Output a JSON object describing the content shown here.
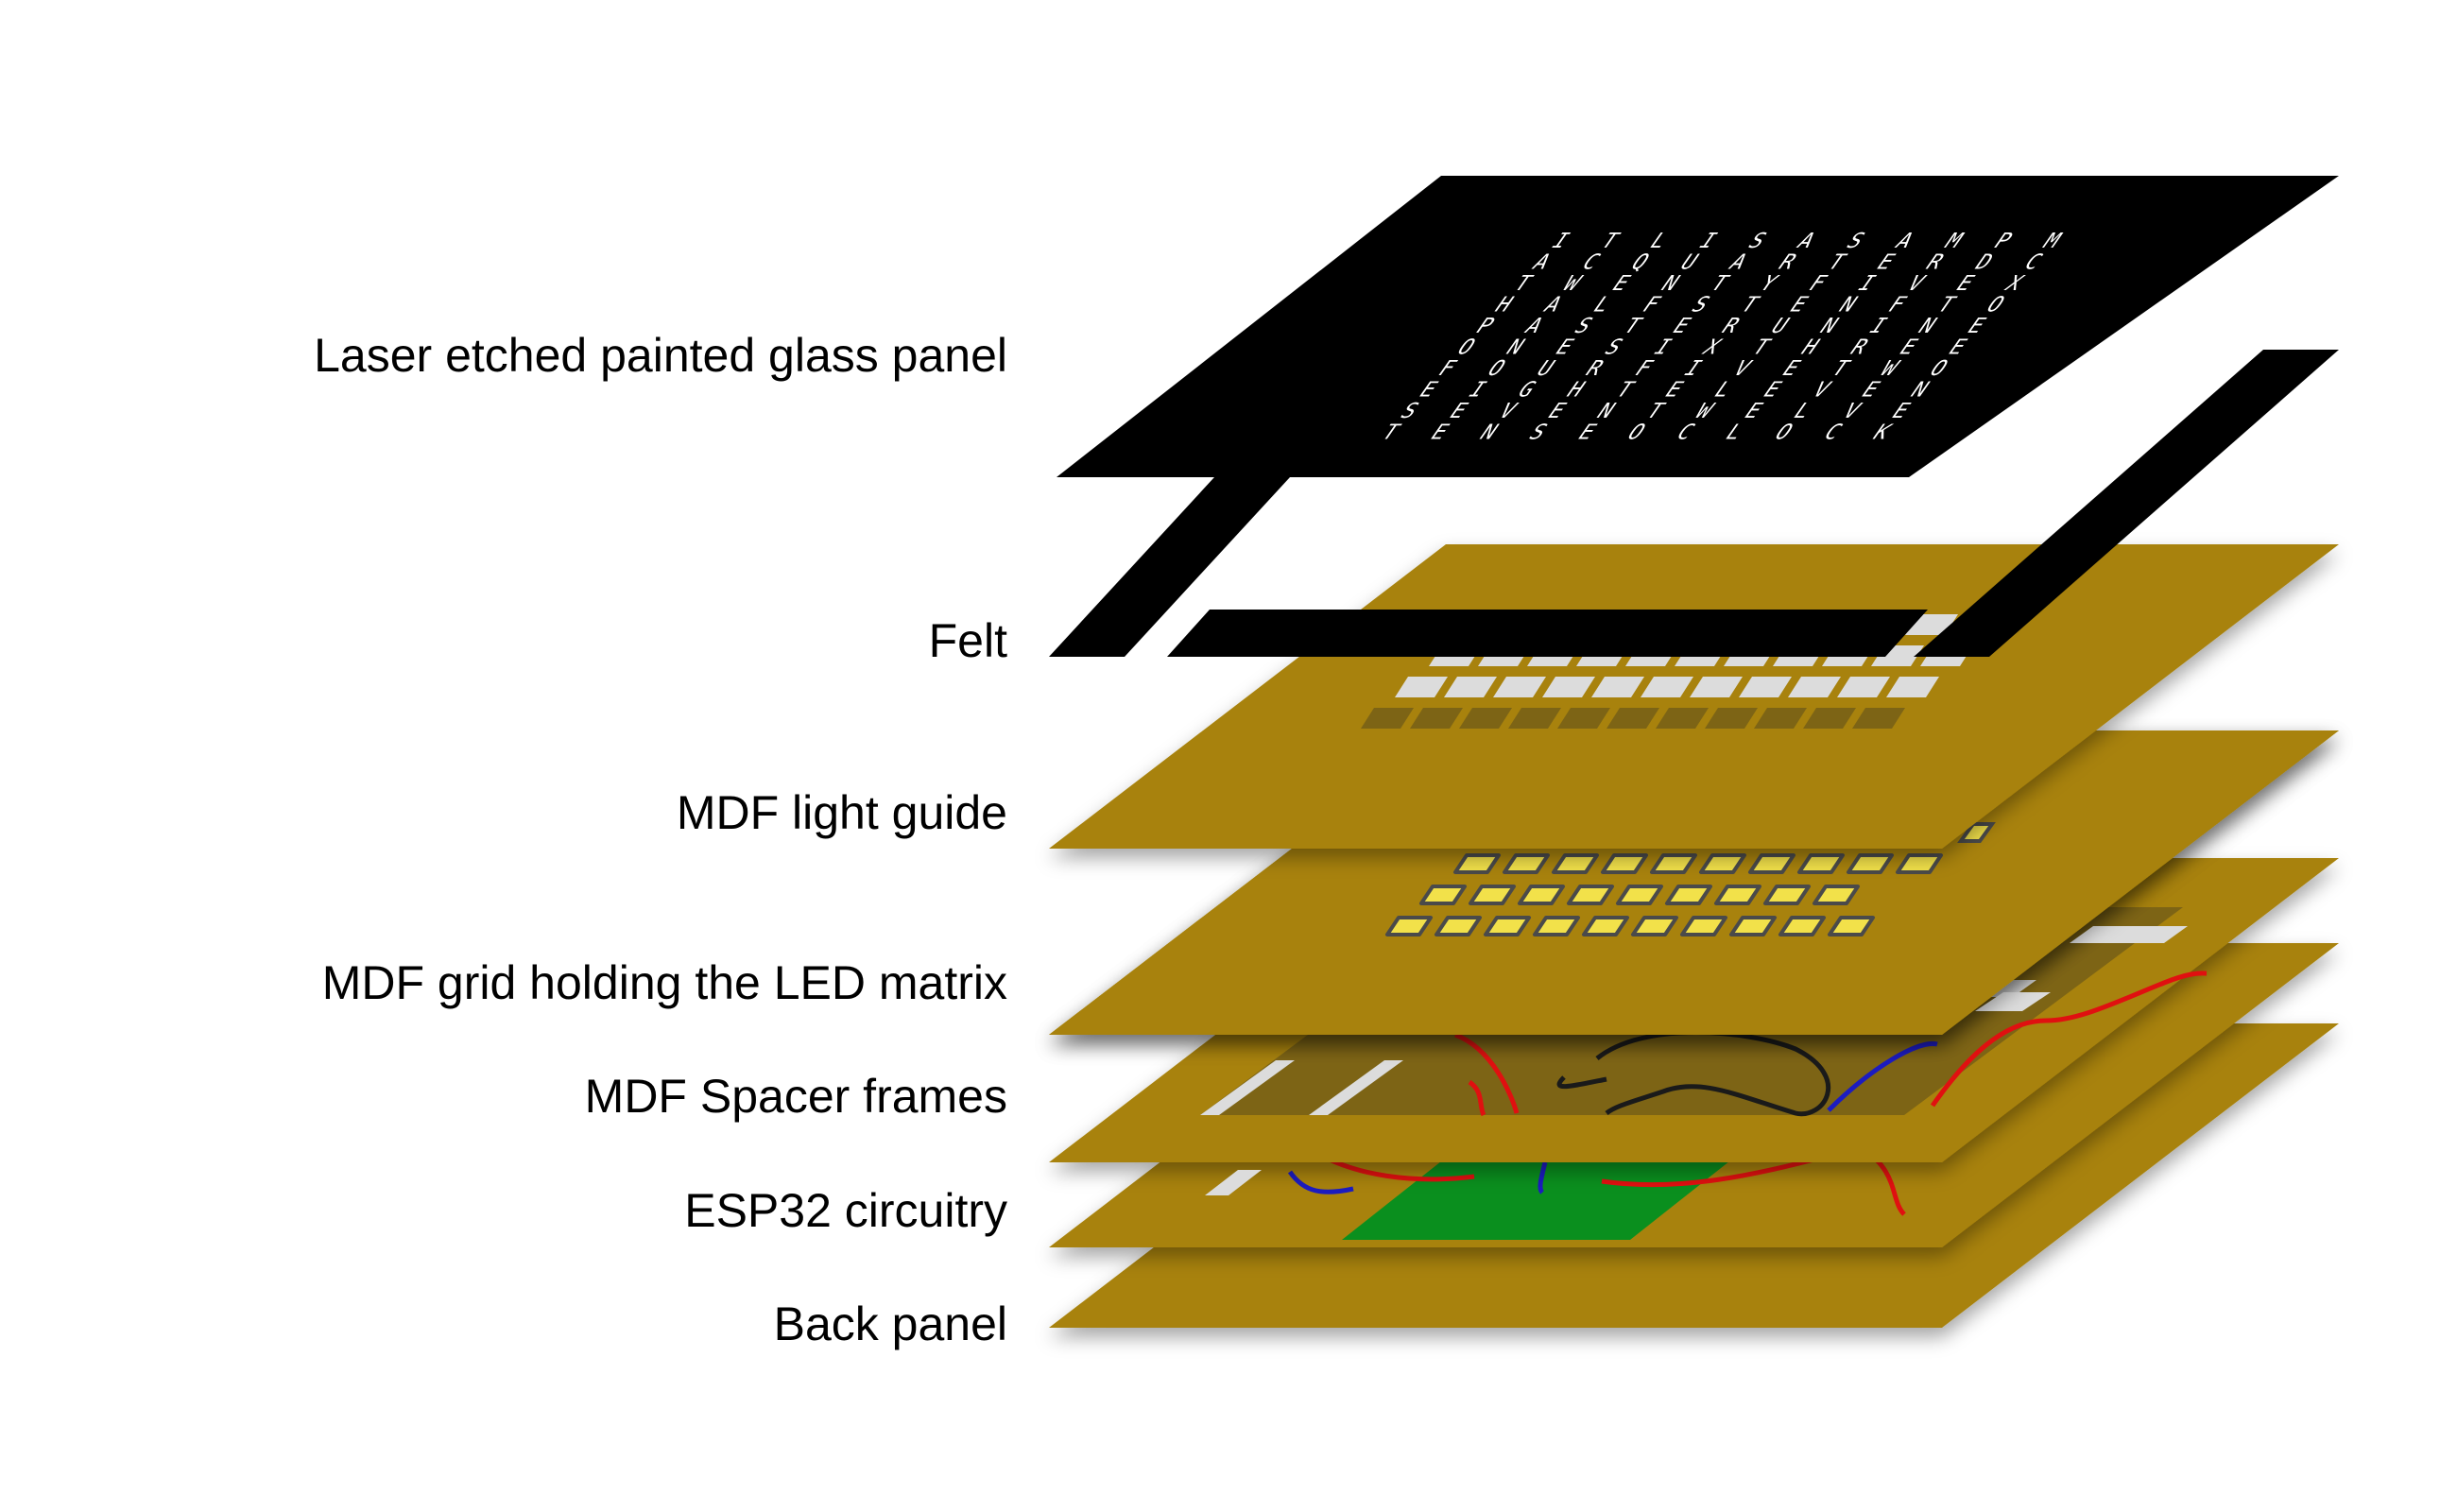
{
  "labels": {
    "glass": "Laser etched painted glass panel",
    "felt": "Felt",
    "light_guide": "MDF light guide",
    "led_grid": "MDF grid holding the LED matrix",
    "spacer": "MDF Spacer frames",
    "esp32": "ESP32 circuitry",
    "back": "Back panel"
  },
  "glass_letter_rows": [
    "ITLISASAMPM",
    "ACQUARTERDC",
    "TWENTYFIVEX",
    "HALFSTENFTO",
    "PASTERUNINE",
    "ONESIXTHREE",
    "FOURFIVETWO",
    "EIGHTELEVEN",
    "SEVENTWELVE",
    "TENSEOCLOCK"
  ],
  "colors": {
    "mdf": "#a8820a",
    "mdf_shadow": "#5c470a",
    "glass": "#000000",
    "pcb": "#0a8f1e",
    "led": "#f2e14a",
    "wire_red": "#e01010",
    "wire_blue": "#1c1cc0",
    "wire_black": "#1a1a1a"
  }
}
